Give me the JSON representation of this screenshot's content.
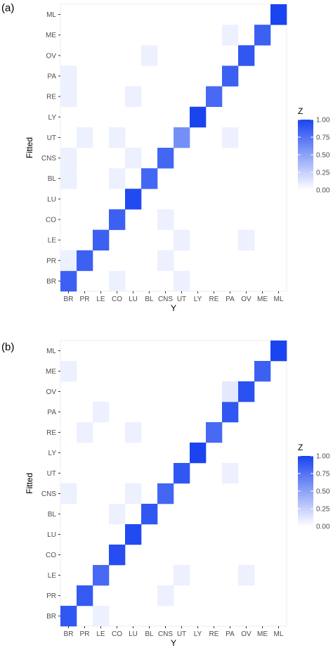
{
  "chart_data": [
    {
      "type": "heatmap",
      "panel_label": "(a)",
      "xlabel": "Y",
      "ylabel": "Fitted",
      "x_categories": [
        "BR",
        "PR",
        "LE",
        "CO",
        "LU",
        "BL",
        "CNS",
        "UT",
        "LY",
        "RE",
        "PA",
        "OV",
        "ME",
        "ML"
      ],
      "y_categories": [
        "BR",
        "PR",
        "LE",
        "CO",
        "LU",
        "BL",
        "CNS",
        "UT",
        "LY",
        "RE",
        "PA",
        "OV",
        "ME",
        "ML"
      ],
      "legend": {
        "title": "Z",
        "ticks": [
          "0.00",
          "0.25",
          "0.50",
          "0.75",
          "1.00"
        ],
        "range": [
          0,
          1
        ],
        "low_color": "#ffffff",
        "high_color": "#1a44f0"
      },
      "cells": [
        {
          "x": "BR",
          "y": "BR",
          "z": 0.85
        },
        {
          "x": "CO",
          "y": "BR",
          "z": 0.08
        },
        {
          "x": "UT",
          "y": "BR",
          "z": 0.08
        },
        {
          "x": "BR",
          "y": "PR",
          "z": 0.08
        },
        {
          "x": "PR",
          "y": "PR",
          "z": 0.85
        },
        {
          "x": "CNS",
          "y": "PR",
          "z": 0.08
        },
        {
          "x": "LE",
          "y": "LE",
          "z": 0.85
        },
        {
          "x": "UT",
          "y": "LE",
          "z": 0.08
        },
        {
          "x": "OV",
          "y": "LE",
          "z": 0.08
        },
        {
          "x": "CO",
          "y": "CO",
          "z": 0.85
        },
        {
          "x": "CNS",
          "y": "CO",
          "z": 0.08
        },
        {
          "x": "LU",
          "y": "LU",
          "z": 0.97
        },
        {
          "x": "BR",
          "y": "BL",
          "z": 0.08
        },
        {
          "x": "CO",
          "y": "BL",
          "z": 0.08
        },
        {
          "x": "BL",
          "y": "BL",
          "z": 0.82
        },
        {
          "x": "BR",
          "y": "CNS",
          "z": 0.08
        },
        {
          "x": "LU",
          "y": "CNS",
          "z": 0.08
        },
        {
          "x": "CNS",
          "y": "CNS",
          "z": 0.82
        },
        {
          "x": "PR",
          "y": "UT",
          "z": 0.08
        },
        {
          "x": "CO",
          "y": "UT",
          "z": 0.08
        },
        {
          "x": "UT",
          "y": "UT",
          "z": 0.6
        },
        {
          "x": "PA",
          "y": "UT",
          "z": 0.08
        },
        {
          "x": "LY",
          "y": "LY",
          "z": 1.0
        },
        {
          "x": "BR",
          "y": "RE",
          "z": 0.08
        },
        {
          "x": "LU",
          "y": "RE",
          "z": 0.08
        },
        {
          "x": "RE",
          "y": "RE",
          "z": 0.8
        },
        {
          "x": "BR",
          "y": "PA",
          "z": 0.08
        },
        {
          "x": "PA",
          "y": "PA",
          "z": 0.85
        },
        {
          "x": "BL",
          "y": "OV",
          "z": 0.08
        },
        {
          "x": "OV",
          "y": "OV",
          "z": 0.9
        },
        {
          "x": "PA",
          "y": "ME",
          "z": 0.08
        },
        {
          "x": "ME",
          "y": "ME",
          "z": 0.85
        },
        {
          "x": "ML",
          "y": "ML",
          "z": 1.0
        }
      ]
    },
    {
      "type": "heatmap",
      "panel_label": "(b)",
      "xlabel": "Y",
      "ylabel": "Fitted",
      "x_categories": [
        "BR",
        "PR",
        "LE",
        "CO",
        "LU",
        "BL",
        "CNS",
        "UT",
        "LY",
        "RE",
        "PA",
        "OV",
        "ME",
        "ML"
      ],
      "y_categories": [
        "BR",
        "PR",
        "LE",
        "CO",
        "LU",
        "BL",
        "CNS",
        "UT",
        "LY",
        "RE",
        "PA",
        "OV",
        "ME",
        "ML"
      ],
      "legend": {
        "title": "Z",
        "ticks": [
          "0.00",
          "0.25",
          "0.50",
          "0.75",
          "1.00"
        ],
        "range": [
          0,
          1
        ],
        "low_color": "#ffffff",
        "high_color": "#1a44f0"
      },
      "cells": [
        {
          "x": "BR",
          "y": "BR",
          "z": 0.9
        },
        {
          "x": "LE",
          "y": "BR",
          "z": 0.08
        },
        {
          "x": "PR",
          "y": "PR",
          "z": 0.88
        },
        {
          "x": "CNS",
          "y": "PR",
          "z": 0.08
        },
        {
          "x": "LE",
          "y": "LE",
          "z": 0.8
        },
        {
          "x": "UT",
          "y": "LE",
          "z": 0.08
        },
        {
          "x": "OV",
          "y": "LE",
          "z": 0.08
        },
        {
          "x": "CO",
          "y": "CO",
          "z": 0.95
        },
        {
          "x": "LU",
          "y": "LU",
          "z": 0.97
        },
        {
          "x": "CO",
          "y": "BL",
          "z": 0.08
        },
        {
          "x": "BL",
          "y": "BL",
          "z": 0.9
        },
        {
          "x": "BR",
          "y": "CNS",
          "z": 0.08
        },
        {
          "x": "LU",
          "y": "CNS",
          "z": 0.08
        },
        {
          "x": "CNS",
          "y": "CNS",
          "z": 0.82
        },
        {
          "x": "UT",
          "y": "UT",
          "z": 0.9
        },
        {
          "x": "PA",
          "y": "UT",
          "z": 0.08
        },
        {
          "x": "LY",
          "y": "LY",
          "z": 1.0
        },
        {
          "x": "PR",
          "y": "RE",
          "z": 0.08
        },
        {
          "x": "LU",
          "y": "RE",
          "z": 0.08
        },
        {
          "x": "RE",
          "y": "RE",
          "z": 0.8
        },
        {
          "x": "LE",
          "y": "PA",
          "z": 0.08
        },
        {
          "x": "PA",
          "y": "PA",
          "z": 0.9
        },
        {
          "x": "PA",
          "y": "OV",
          "z": 0.12
        },
        {
          "x": "OV",
          "y": "OV",
          "z": 0.93
        },
        {
          "x": "BR",
          "y": "ME",
          "z": 0.08
        },
        {
          "x": "ME",
          "y": "ME",
          "z": 0.85
        },
        {
          "x": "ML",
          "y": "ML",
          "z": 1.0
        }
      ]
    }
  ]
}
